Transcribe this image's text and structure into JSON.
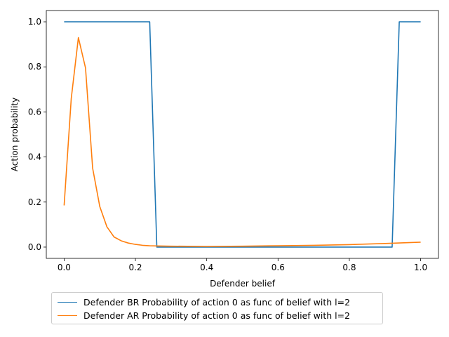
{
  "chart_data": {
    "type": "line",
    "title": "",
    "xlabel": "Defender belief",
    "ylabel": "Action probability",
    "xlim": [
      -0.05,
      1.05
    ],
    "ylim": [
      -0.05,
      1.05
    ],
    "xticks": [
      0.0,
      0.2,
      0.4,
      0.6,
      0.8,
      1.0
    ],
    "xtick_labels": [
      "0.0",
      "0.2",
      "0.4",
      "0.6",
      "0.8",
      "1.0"
    ],
    "yticks": [
      0.0,
      0.2,
      0.4,
      0.6,
      0.8,
      1.0
    ],
    "ytick_labels": [
      "0.0",
      "0.2",
      "0.4",
      "0.6",
      "0.8",
      "1.0"
    ],
    "grid": false,
    "legend_position": "below",
    "series": [
      {
        "name": "Defender BR Probability of action 0 as func of belief with l=2",
        "color": "#1f77b4",
        "x": [
          0.0,
          0.02,
          0.04,
          0.06,
          0.08,
          0.1,
          0.12,
          0.14,
          0.16,
          0.18,
          0.2,
          0.22,
          0.24,
          0.26,
          0.28,
          0.3,
          0.4,
          0.5,
          0.6,
          0.7,
          0.8,
          0.9,
          0.92,
          0.94,
          0.96,
          0.98,
          1.0
        ],
        "y": [
          1.0,
          1.0,
          1.0,
          1.0,
          1.0,
          1.0,
          1.0,
          1.0,
          1.0,
          1.0,
          1.0,
          1.0,
          1.0,
          0.0,
          0.0,
          0.0,
          0.0,
          0.0,
          0.0,
          0.0,
          0.0,
          0.0,
          0.0,
          1.0,
          1.0,
          1.0,
          1.0
        ]
      },
      {
        "name": "Defender AR Probability of action 0 as func of belief with l=2",
        "color": "#ff7f0e",
        "x": [
          0.0,
          0.02,
          0.04,
          0.06,
          0.08,
          0.1,
          0.12,
          0.14,
          0.16,
          0.18,
          0.2,
          0.22,
          0.24,
          0.26,
          0.3,
          0.4,
          0.5,
          0.6,
          0.7,
          0.8,
          0.9,
          1.0
        ],
        "y": [
          0.185,
          0.66,
          0.93,
          0.795,
          0.35,
          0.18,
          0.09,
          0.045,
          0.028,
          0.018,
          0.012,
          0.008,
          0.006,
          0.005,
          0.004,
          0.003,
          0.004,
          0.006,
          0.008,
          0.011,
          0.016,
          0.022
        ]
      }
    ]
  }
}
